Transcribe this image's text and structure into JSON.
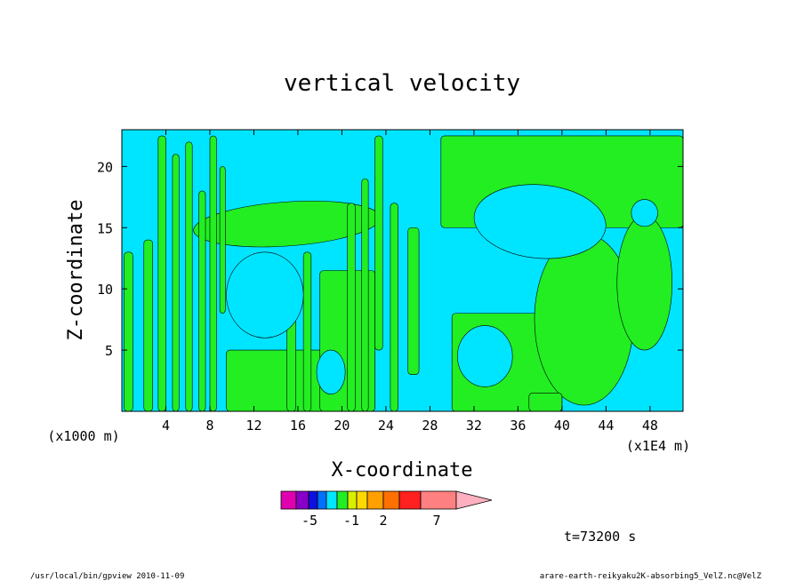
{
  "chart_data": {
    "type": "heatmap",
    "title": "vertical velocity",
    "xlabel": "X-coordinate",
    "ylabel": "Z-coordinate",
    "x_unit_label": "(x1E4 m)",
    "z_unit_label": "(x1000 m)",
    "x_ticks": [
      "4",
      "8",
      "12",
      "16",
      "20",
      "24",
      "28",
      "32",
      "36",
      "40",
      "44",
      "48"
    ],
    "y_ticks": [
      "5",
      "10",
      "15",
      "20"
    ],
    "xlim": [
      0,
      51
    ],
    "ylim": [
      0,
      23
    ],
    "colors": {
      "negative_small": "#00e5ff",
      "positive_small": "#22ee22"
    },
    "colorbar": {
      "segment_colors": [
        "#e000b0",
        "#8800c8",
        "#1010e0",
        "#0070ff",
        "#00e5ff",
        "#22ee22",
        "#d8f000",
        "#ffd800",
        "#ffa000",
        "#ff7000",
        "#ff2020",
        "#ff8080"
      ],
      "extend_color": "#ffb0c0",
      "labels": [
        "-5",
        "-1",
        "2",
        "7"
      ]
    },
    "time_label": "t=73200 s"
  },
  "footer": {
    "left": "/usr/local/bin/gpview  2010-11-09",
    "right": "arare-earth-reikyaku2K-absorbing5_VelZ.nc@VelZ"
  }
}
